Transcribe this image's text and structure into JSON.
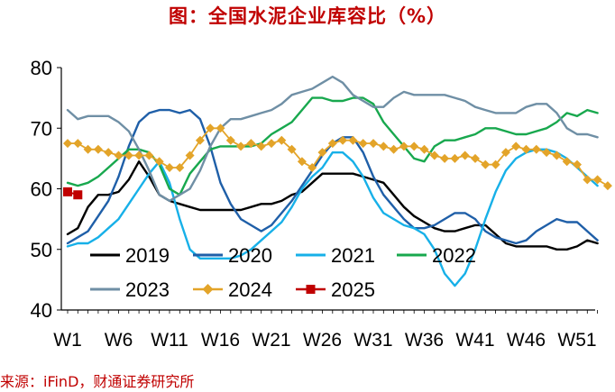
{
  "title": "图：全国水泥企业库容比（%）",
  "source": "来源：iFinD，财通证券研究所",
  "colors": {
    "title": "#c00000",
    "source": "#c00000",
    "axis": "#000000"
  },
  "chart_data": {
    "type": "line",
    "title": "图：全国水泥企业库容比（%）",
    "xlabel": "",
    "ylabel": "",
    "xlim": [
      1,
      53
    ],
    "ylim": [
      40,
      80
    ],
    "yticks": [
      40,
      50,
      60,
      70,
      80
    ],
    "xticks": [
      {
        "label": "W1",
        "week": 1
      },
      {
        "label": "W6",
        "week": 6
      },
      {
        "label": "W11",
        "week": 11
      },
      {
        "label": "W16",
        "week": 16
      },
      {
        "label": "W21",
        "week": 21
      },
      {
        "label": "W26",
        "week": 26
      },
      {
        "label": "W31",
        "week": 31
      },
      {
        "label": "W36",
        "week": 36
      },
      {
        "label": "W41",
        "week": 41
      },
      {
        "label": "W46",
        "week": 46
      },
      {
        "label": "W51",
        "week": 51
      }
    ],
    "grid": false,
    "legend_position": "bottom-inside",
    "series": [
      {
        "name": "2019",
        "color": "#000000",
        "width": 2.4,
        "marker": "none",
        "start_week": 1,
        "values": [
          52.5,
          53.5,
          57,
          59,
          59,
          59.5,
          61.5,
          64.5,
          62,
          59,
          58,
          57.5,
          57,
          56.5,
          56.5,
          56.5,
          56.5,
          56.5,
          57,
          57.5,
          57.5,
          58,
          59,
          59.5,
          61,
          62.5,
          62.5,
          62.5,
          62.5,
          62,
          61.5,
          61,
          59,
          57,
          55.5,
          54.5,
          53.5,
          53,
          53,
          53.5,
          54,
          54,
          52.5,
          51,
          50.5,
          50.5,
          50.5,
          50.5,
          50,
          50,
          50.5,
          51.5,
          51
        ]
      },
      {
        "name": "2020",
        "color": "#1f5fa8",
        "width": 2.4,
        "marker": "none",
        "start_week": 1,
        "values": [
          51,
          52,
          53,
          55.5,
          58,
          62,
          67,
          71,
          72.5,
          73,
          73,
          72.5,
          73,
          71.5,
          67,
          61,
          57.5,
          55,
          54,
          53,
          54,
          56,
          58,
          60.5,
          63,
          65.5,
          67.5,
          68.5,
          68.5,
          66,
          62,
          59,
          57,
          55,
          53.5,
          53.5,
          54,
          55,
          56,
          56,
          55,
          53,
          52,
          51.5,
          51,
          51.5,
          53,
          54,
          55,
          54.5,
          54.5,
          53,
          51.5
        ]
      },
      {
        "name": "2021",
        "color": "#17b0e8",
        "width": 2.4,
        "marker": "none",
        "start_week": 1,
        "values": [
          50.5,
          51,
          51,
          52,
          53.5,
          55,
          57.5,
          60,
          62.5,
          64.5,
          61,
          55,
          50,
          48.5,
          48.5,
          48.5,
          48.5,
          49,
          50,
          51.5,
          53,
          54.5,
          57,
          60,
          62,
          63.5,
          66,
          66,
          64.5,
          62,
          58.5,
          56,
          55,
          54,
          53.5,
          52.5,
          50,
          46,
          44,
          46,
          50,
          55,
          59.5,
          63,
          65,
          66,
          66.5,
          66.5,
          66,
          65,
          63.5,
          62,
          60.5
        ]
      },
      {
        "name": "2022",
        "color": "#18a84e",
        "width": 2.4,
        "marker": "none",
        "start_week": 1,
        "values": [
          61,
          60.5,
          61,
          62,
          63.5,
          65,
          66.5,
          66.5,
          66,
          64,
          60,
          59,
          62.5,
          64.5,
          66.5,
          67,
          67,
          67,
          67,
          67.5,
          69,
          70,
          71,
          73,
          75,
          75,
          74.5,
          74.5,
          75,
          75,
          74,
          71,
          69,
          67,
          65,
          64.5,
          67,
          68,
          68,
          68.5,
          69,
          70,
          70,
          69.5,
          69,
          69,
          69.5,
          70,
          71,
          72.5,
          72,
          73,
          72.5
        ]
      },
      {
        "name": "2023",
        "color": "#6f8fa5",
        "width": 2.4,
        "marker": "none",
        "start_week": 1,
        "values": [
          73,
          71.5,
          72,
          72,
          72,
          71,
          69.5,
          66.5,
          63,
          59,
          58,
          59,
          60,
          63,
          67,
          70,
          71.5,
          71.5,
          72,
          72.5,
          73,
          74,
          75.5,
          76,
          76.5,
          77.5,
          78.5,
          77.5,
          75.5,
          74.5,
          73.5,
          73.5,
          75,
          76,
          75.5,
          75.5,
          75.5,
          75.5,
          75,
          74.5,
          73.5,
          73,
          72.5,
          72.5,
          72.5,
          73.5,
          74,
          74,
          72.5,
          70,
          69,
          69,
          68.5
        ]
      },
      {
        "name": "2024",
        "color": "#e3a429",
        "width": 1.8,
        "marker": "diamond",
        "start_week": 1,
        "values": [
          67.5,
          67.5,
          66.5,
          66.5,
          66,
          65.5,
          65.5,
          65.5,
          65.5,
          64.5,
          63.5,
          63.5,
          65.5,
          68,
          70,
          70,
          68,
          67,
          67.5,
          67,
          67.5,
          68,
          66.5,
          64.5,
          63.5,
          66,
          67.5,
          68,
          68,
          67.5,
          67.5,
          67,
          66.5,
          67,
          67,
          66.5,
          65.5,
          65,
          65,
          65.5,
          65,
          64,
          64,
          66,
          67,
          66.5,
          66.5,
          66,
          65.5,
          64.5,
          64,
          61.5,
          61.5,
          60.5
        ]
      },
      {
        "name": "2025",
        "color": "#c00000",
        "width": 2.0,
        "marker": "square",
        "start_week": 1,
        "values": [
          59.5,
          59
        ]
      }
    ]
  }
}
